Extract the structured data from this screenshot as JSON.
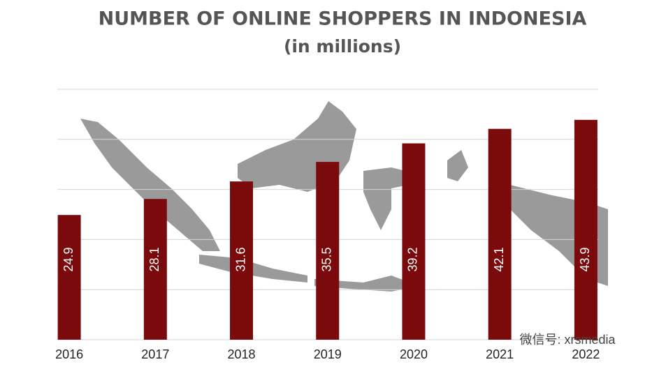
{
  "chart_data": {
    "type": "bar",
    "title": "NUMBER OF ONLINE SHOPPERS IN INDONESIA",
    "subtitle": "(in millions)",
    "categories": [
      "2016",
      "2017",
      "2018",
      "2019",
      "2020",
      "2021",
      "2022"
    ],
    "values": [
      24.9,
      28.1,
      31.6,
      35.5,
      39.2,
      42.1,
      43.9
    ],
    "color": "#7a0a0c",
    "ylim": [
      0,
      50
    ],
    "yticks": [
      0,
      10,
      20,
      30,
      40,
      50
    ],
    "grid": true,
    "watermark": "微信号: xrsmedia"
  }
}
